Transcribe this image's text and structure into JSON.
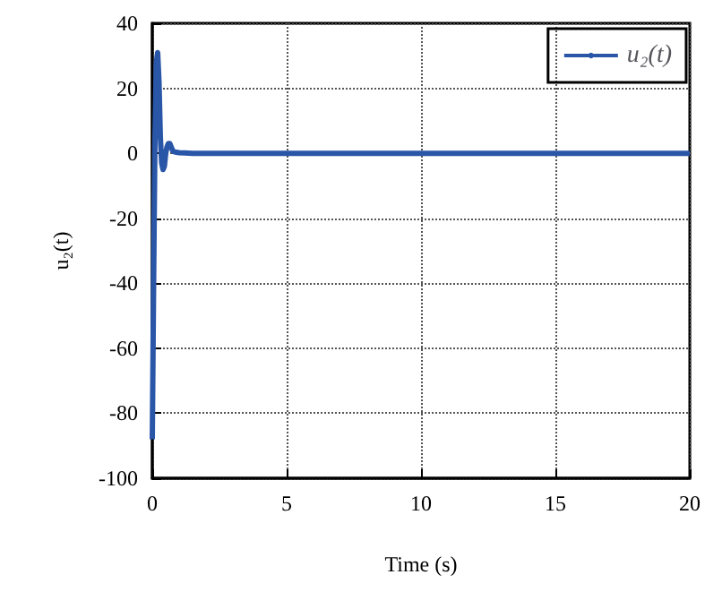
{
  "chart_data": {
    "type": "line",
    "xlabel": "Time (s)",
    "ylabel": "u₂(t)",
    "x": [
      0,
      0.05,
      0.1,
      0.15,
      0.2,
      0.25,
      0.3,
      0.35,
      0.4,
      0.45,
      0.5,
      0.55,
      0.6,
      0.65,
      0.7,
      0.75,
      0.8,
      0.9,
      1,
      1.2,
      1.5,
      2,
      3,
      5,
      10,
      15,
      20
    ],
    "series": [
      {
        "name": "u₂(t)",
        "color": "#2a56a8",
        "values": [
          -88,
          -40,
          5,
          28,
          31,
          22,
          5,
          -3,
          -5,
          -4,
          0,
          2,
          3,
          3,
          2,
          1,
          0.5,
          0.3,
          0.2,
          0.1,
          0,
          0,
          0,
          0,
          0,
          0,
          0
        ]
      }
    ],
    "xlim": [
      0,
      20
    ],
    "xticks": [
      0,
      5,
      10,
      15,
      20
    ],
    "ylim": [
      -100,
      40
    ],
    "yticks": [
      -100,
      -80,
      -60,
      -40,
      -20,
      0,
      20,
      40
    ],
    "grid": true,
    "legend": "top right",
    "marker": "none",
    "line_style": "solid"
  }
}
